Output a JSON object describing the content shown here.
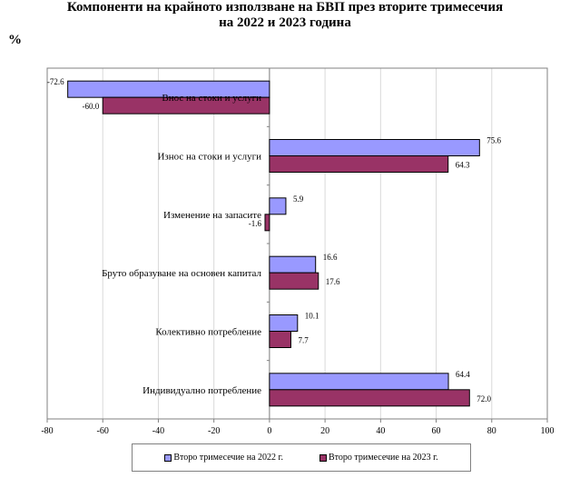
{
  "title_line1": "Компоненти на крайното използване на БВП през вторите тримесечия",
  "title_line2": "на 2022 и 2023 година",
  "unit": "%",
  "chart_data": {
    "type": "bar",
    "orientation": "horizontal",
    "title": "Компоненти на крайното използване на БВП през вторите тримесечия на 2022 и 2023 година",
    "ylabel": "%",
    "categories": [
      "Внос на стоки и услуги",
      "Износ на стоки и услуги",
      "Изменение на запасите",
      "Бруто образуване на основен капитал",
      "Колективно потребление",
      "Индивидуално потребление"
    ],
    "series": [
      {
        "name": "Второ тримесечие на 2022 г.",
        "color": "#9999ff",
        "values": [
          -72.6,
          75.6,
          5.9,
          16.6,
          10.1,
          64.4
        ],
        "labels": [
          "-72.6",
          "75.6",
          "5.9",
          "16.6",
          "10.1",
          "64.4"
        ]
      },
      {
        "name": "Второ тримесечие на 2023 г.",
        "color": "#993366",
        "values": [
          -60.0,
          64.3,
          -1.6,
          17.6,
          7.7,
          72.0
        ],
        "labels": [
          "-60.0",
          "64.3",
          "-1.6",
          "17.6",
          "7.7",
          "72.0"
        ]
      }
    ],
    "xlim": [
      -80,
      100
    ],
    "xticks": [
      "-80",
      "-60",
      "-40",
      "-20",
      "0",
      "20",
      "40",
      "60",
      "80",
      "100"
    ],
    "grid": true,
    "legend": "bottom"
  }
}
